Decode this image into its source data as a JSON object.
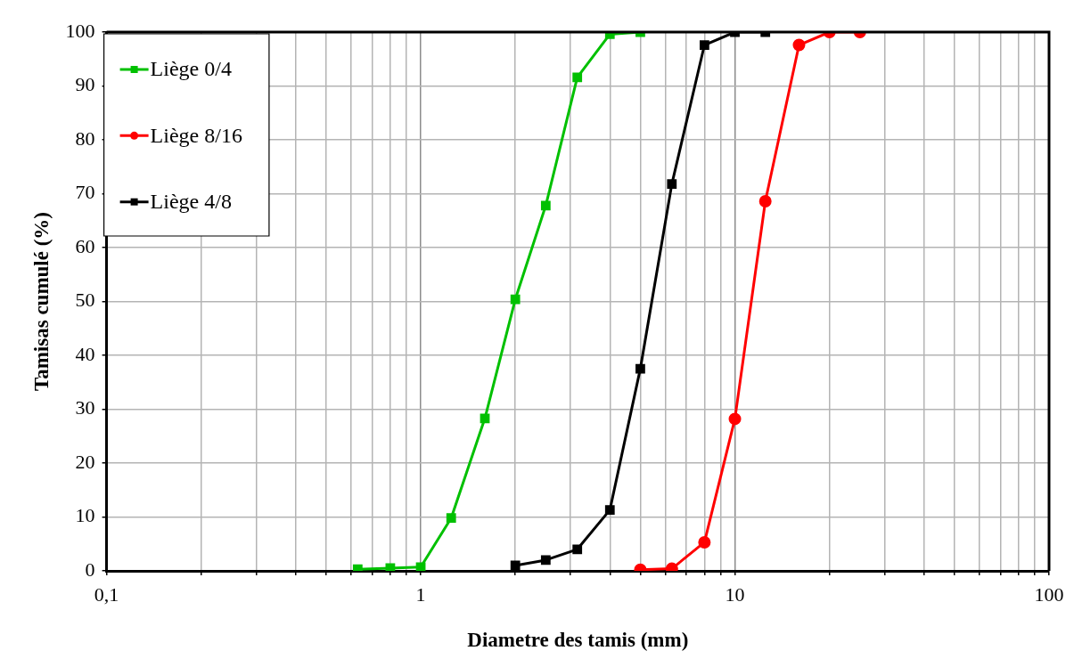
{
  "chart_data": {
    "type": "line",
    "xlabel": "Diametre des tamis (mm)",
    "ylabel": "Tamisas cumulé (%)",
    "log": "x",
    "xlim": [
      0.1,
      100
    ],
    "ylim": [
      0,
      100
    ],
    "xticks": [
      {
        "value": 0.1,
        "label": "0,1"
      },
      {
        "value": 0.2,
        "label": null
      },
      {
        "value": 0.3,
        "label": null
      },
      {
        "value": 0.4,
        "label": null
      },
      {
        "value": 0.5,
        "label": null
      },
      {
        "value": 0.6,
        "label": null
      },
      {
        "value": 0.7,
        "label": null
      },
      {
        "value": 0.8,
        "label": null
      },
      {
        "value": 0.9,
        "label": null
      },
      1,
      {
        "value": 2,
        "label": null
      },
      {
        "value": 3,
        "label": null
      },
      {
        "value": 4,
        "label": null
      },
      {
        "value": 5,
        "label": null
      },
      {
        "value": 6,
        "label": null
      },
      {
        "value": 7,
        "label": null
      },
      {
        "value": 8,
        "label": null
      },
      {
        "value": 9,
        "label": null
      },
      10,
      {
        "value": 20,
        "label": null
      },
      {
        "value": 30,
        "label": null
      },
      {
        "value": 40,
        "label": null
      },
      {
        "value": 50,
        "label": null
      },
      {
        "value": 60,
        "label": null
      },
      {
        "value": 70,
        "label": null
      },
      {
        "value": 80,
        "label": null
      },
      {
        "value": 90,
        "label": null
      },
      100
    ],
    "yticks": [
      0,
      10,
      20,
      30,
      40,
      50,
      60,
      70,
      80,
      90,
      100
    ],
    "grid": true,
    "legend": "top left",
    "series": [
      {
        "name": "Liège 0/4",
        "color": "#00c000",
        "marker": "square",
        "x": [
          0.63,
          0.8,
          1,
          1.25,
          1.6,
          2,
          2.5,
          3.15,
          4,
          5
        ],
        "values": [
          0.3,
          0.5,
          0.7,
          9.8,
          28.3,
          50.4,
          67.8,
          91.6,
          99.6,
          100
        ]
      },
      {
        "name": "Liège 8/16",
        "color": "#ff0000",
        "marker": "circle",
        "x": [
          5,
          6.3,
          8,
          10,
          12.5,
          16,
          20,
          25
        ],
        "values": [
          0.2,
          0.4,
          5.3,
          28.2,
          68.6,
          97.6,
          100,
          100
        ]
      },
      {
        "name": "Liège 4/8",
        "color": "#000000",
        "marker": "square",
        "x": [
          2,
          2.5,
          3.15,
          4,
          5,
          6.3,
          8,
          10,
          12.5
        ],
        "values": [
          1,
          2,
          4,
          11.3,
          37.5,
          71.8,
          97.6,
          100,
          100
        ]
      }
    ]
  }
}
